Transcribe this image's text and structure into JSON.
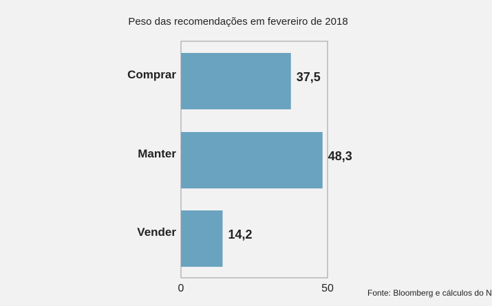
{
  "chart_data": {
    "type": "bar",
    "orientation": "horizontal",
    "title": "Peso das recomendações em fevereiro de 2018",
    "categories": [
      "Comprar",
      "Manter",
      "Vender"
    ],
    "values": [
      37.5,
      48.3,
      14.2
    ],
    "value_labels": [
      "37,5",
      "48,3",
      "14,2"
    ],
    "xlim": [
      0,
      50
    ],
    "xticks": [
      "0",
      "50"
    ],
    "xlabel": "",
    "ylabel": "",
    "grid": false,
    "bar_color": "#6aa3bf",
    "source": "Fonte: Bloomberg  e cálculos do Negócios"
  }
}
